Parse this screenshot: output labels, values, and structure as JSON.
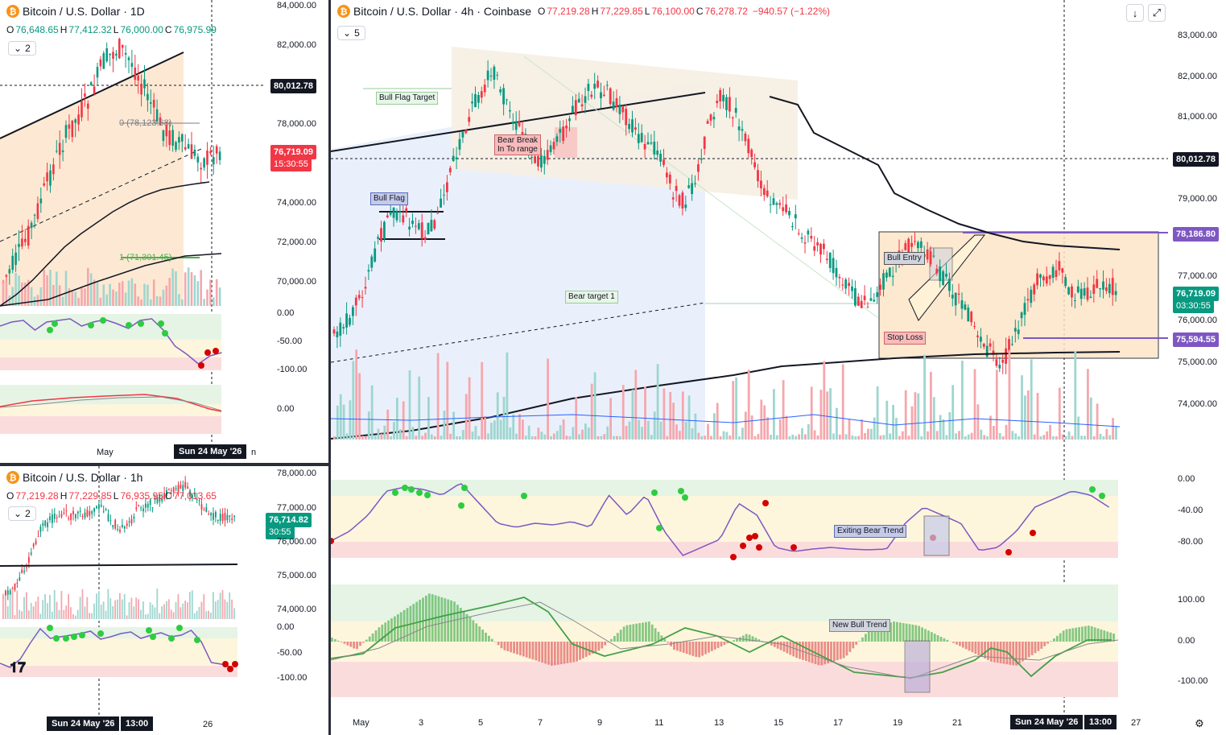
{
  "daily": {
    "title": "Bitcoin / U.S. Dollar · 1D",
    "ohlc": {
      "o": "76,648.65",
      "h": "77,412.32",
      "l": "76,000.00",
      "c": "76,975.99"
    },
    "collapse_count": "2",
    "axis": [
      "84,000.00",
      "82,000.00",
      "80,012.78",
      "78,000.00",
      "76,719.09",
      "74,000.00",
      "72,000.00",
      "70,000.00",
      "0.00",
      "-50.00",
      "-100.00",
      "0.00"
    ],
    "price_label": "76,719.09",
    "countdown": "15:30:55",
    "crosshair_price": "80,012.78",
    "fib0": "0 (78,123.68)",
    "fib1": "1 (71,301.45)",
    "time_labels": [
      "May",
      "Sun 24 May '26",
      "n"
    ]
  },
  "hourly": {
    "title": "Bitcoin / U.S. Dollar · 1h",
    "ohlc": {
      "o": "77,219.28",
      "h": "77,229.85",
      "l": "76,935.95",
      "c": "77,013.65"
    },
    "collapse_count": "2",
    "axis": [
      "78,000.00",
      "77,000.00",
      "76,714.82",
      "76,000.00",
      "75,000.00",
      "74,000.00",
      "0.00",
      "-50.00",
      "-100.00"
    ],
    "price_label": "76,714.82",
    "countdown": "30:55",
    "time_labels": [
      "Sun 24 May '26",
      "13:00",
      "26"
    ]
  },
  "main": {
    "title": "Bitcoin / U.S. Dollar · 4h · Coinbase",
    "ohlc": {
      "o": "77,219.28",
      "h": "77,229.85",
      "l": "76,100.00",
      "c": "76,278.72",
      "chg": "−940.57 (−1.22%)"
    },
    "collapse_count": "5",
    "axis": [
      "83,000.00",
      "82,000.00",
      "81,000.00",
      "80,012.78",
      "79,000.00",
      "78,186.80",
      "77,000.00",
      "76,719.09",
      "76,000.00",
      "75,594.55",
      "75,000.00",
      "74,000.00"
    ],
    "countdown": "03:30:55",
    "osc_axis": [
      "0.00",
      "-40.00",
      "-80.00"
    ],
    "macd_axis": [
      "100.00",
      "0.00",
      "-100.00"
    ],
    "time_labels": [
      "May",
      "3",
      "5",
      "7",
      "9",
      "11",
      "13",
      "15",
      "17",
      "19",
      "21",
      "Sun 24 May '26",
      "13:00",
      "27"
    ],
    "notes": {
      "bull_flag_target": "Bull Flag Target",
      "bull_flag": "Bull Flag",
      "bear_break_1": "Bear Break",
      "bear_break_2": "In To range",
      "bear_target": "Bear target 1",
      "bull_entry": "Bull Entry",
      "stop_loss": "Stop Loss",
      "exiting_bear": "Exiting Bear Trend",
      "new_bull": "New Bull Trend"
    }
  },
  "colors": {
    "up": "#089981",
    "down": "#f23645",
    "purple": "#7e57c2",
    "dark": "#131722"
  },
  "icons": {
    "download": "download-icon",
    "fullscreen": "fullscreen-icon",
    "settings": "gear-icon",
    "logo": "tradingview-logo"
  }
}
